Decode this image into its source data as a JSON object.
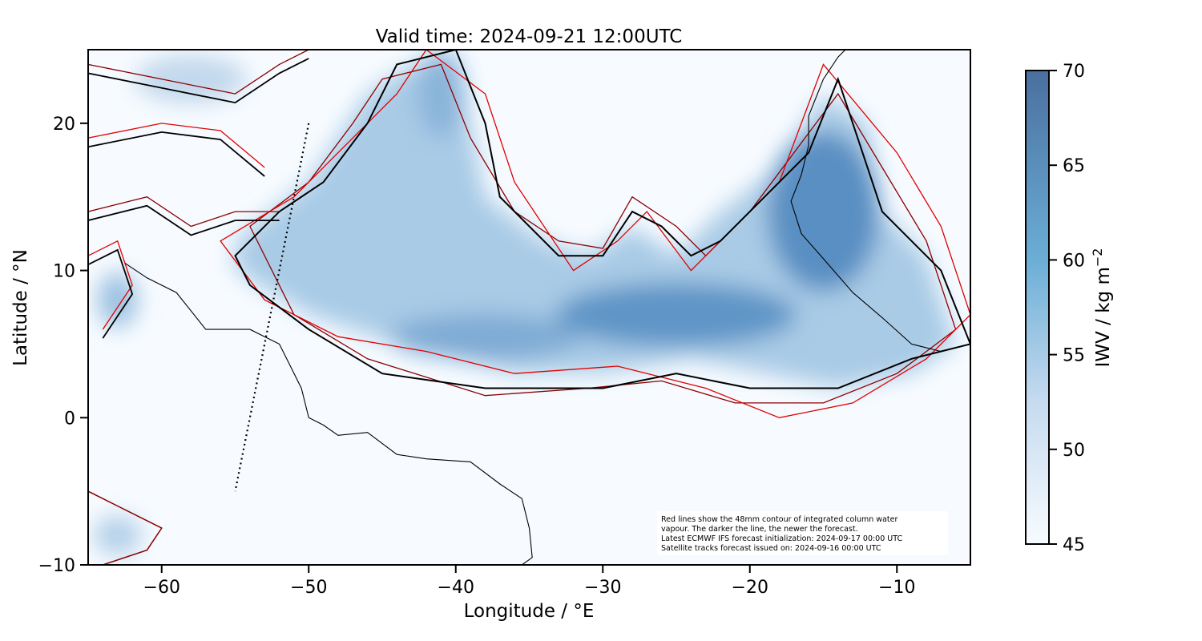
{
  "title": "Valid time: 2024-09-21 12:00UTC",
  "x_axis": {
    "label": "Longitude / °E",
    "range": [
      -65,
      -5
    ],
    "ticks": [
      -60,
      -50,
      -40,
      -30,
      -20,
      -10
    ],
    "tick_labels": [
      "−60",
      "−50",
      "−40",
      "−30",
      "−20",
      "−10"
    ]
  },
  "y_axis": {
    "label": "Latitude / °N",
    "range": [
      -10,
      25
    ],
    "ticks": [
      -10,
      0,
      10,
      20
    ],
    "tick_labels": [
      "−10",
      "0",
      "10",
      "20"
    ]
  },
  "colorbar": {
    "label": "IWV / kg m",
    "label_exponent": "−2",
    "range": [
      45,
      70
    ],
    "ticks": [
      45,
      50,
      55,
      60,
      65,
      70
    ],
    "tick_labels": [
      "45",
      "50",
      "55",
      "60",
      "65",
      "70"
    ],
    "color_low": "#f7fbff",
    "color_high": "#4a6f9f"
  },
  "info_box": {
    "lines": [
      "Red lines show the 48mm contour of integrated column water",
      "vapour. The darker the line, the newer the forecast.",
      "Latest ECMWF IFS forecast initialization: 2024-09-17 00:00 UTC",
      "Satellite tracks forecast issued on: 2024-09-16 00:00 UTC"
    ]
  },
  "colors": {
    "newest_contour": "#000000",
    "older_contour_dark": "#8b0000",
    "older_contour": "#e00000",
    "coastline": "#000000",
    "satellite_track": "#000000"
  },
  "satellite_track": {
    "start": {
      "lon": -50.0,
      "lat": 20.0
    },
    "end": {
      "lon": -55.0,
      "lat": -5.0
    }
  },
  "main_moist_band": [
    [
      -55,
      12
    ],
    [
      -50,
      16
    ],
    [
      -46,
      22
    ],
    [
      -43,
      24
    ],
    [
      -40,
      24
    ],
    [
      -39,
      20
    ],
    [
      -38,
      15
    ],
    [
      -34,
      12
    ],
    [
      -31,
      11
    ],
    [
      -28,
      13
    ],
    [
      -25,
      11
    ],
    [
      -22,
      14
    ],
    [
      -18,
      17
    ],
    [
      -15,
      22
    ],
    [
      -12,
      20
    ],
    [
      -11,
      14
    ],
    [
      -8,
      11
    ],
    [
      -6,
      5
    ],
    [
      -9,
      3
    ],
    [
      -14,
      2
    ],
    [
      -19,
      3
    ],
    [
      -24,
      4
    ],
    [
      -30,
      3
    ],
    [
      -36,
      3
    ],
    [
      -44,
      5
    ],
    [
      -50,
      7
    ],
    [
      -55,
      10
    ]
  ],
  "newest_contour": [
    [
      -55,
      11
    ],
    [
      -52,
      14
    ],
    [
      -49,
      16
    ],
    [
      -46,
      20
    ],
    [
      -44,
      24
    ],
    [
      -40,
      25
    ],
    [
      -38,
      20
    ],
    [
      -37,
      15
    ],
    [
      -33,
      11
    ],
    [
      -30,
      11
    ],
    [
      -28,
      14
    ],
    [
      -26,
      13
    ],
    [
      -24,
      11
    ],
    [
      -22,
      12
    ],
    [
      -19,
      15
    ],
    [
      -16,
      18
    ],
    [
      -14,
      23
    ],
    [
      -13,
      20
    ],
    [
      -11,
      14
    ],
    [
      -7,
      10
    ],
    [
      -5,
      5
    ],
    [
      -9,
      4
    ],
    [
      -14,
      2
    ],
    [
      -20,
      2
    ],
    [
      -25,
      3
    ],
    [
      -30,
      2
    ],
    [
      -38,
      2
    ],
    [
      -45,
      3
    ],
    [
      -50,
      6
    ],
    [
      -54,
      9
    ],
    [
      -55,
      11
    ]
  ],
  "older_contours": [
    [
      [
        -54,
        13
      ],
      [
        -50,
        16
      ],
      [
        -47,
        20
      ],
      [
        -45,
        23
      ],
      [
        -41,
        24
      ],
      [
        -39,
        19
      ],
      [
        -36,
        14
      ],
      [
        -33,
        12
      ],
      [
        -30,
        11.5
      ],
      [
        -28,
        15
      ],
      [
        -25,
        13
      ],
      [
        -23,
        11
      ],
      [
        -20,
        14
      ],
      [
        -17,
        18
      ],
      [
        -14,
        22
      ],
      [
        -11,
        17
      ],
      [
        -8,
        12
      ],
      [
        -6,
        6
      ],
      [
        -10,
        3
      ],
      [
        -15,
        1
      ],
      [
        -21,
        1
      ],
      [
        -26,
        2.5
      ],
      [
        -31,
        2
      ],
      [
        -38,
        1.5
      ],
      [
        -46,
        4
      ],
      [
        -51,
        7
      ],
      [
        -54,
        13
      ]
    ],
    [
      [
        -56,
        12
      ],
      [
        -51,
        15
      ],
      [
        -48,
        18
      ],
      [
        -44,
        22
      ],
      [
        -42,
        25
      ],
      [
        -38,
        22
      ],
      [
        -36,
        16
      ],
      [
        -32,
        10
      ],
      [
        -29,
        12
      ],
      [
        -27,
        14
      ],
      [
        -24,
        10
      ],
      [
        -21,
        13
      ],
      [
        -18,
        16
      ],
      [
        -15,
        24
      ],
      [
        -10,
        18
      ],
      [
        -7,
        13
      ],
      [
        -5,
        7
      ],
      [
        -8,
        4
      ],
      [
        -13,
        1
      ],
      [
        -18,
        0
      ],
      [
        -23,
        2
      ],
      [
        -29,
        3.5
      ],
      [
        -36,
        3
      ],
      [
        -42,
        4.5
      ],
      [
        -48,
        5.5
      ],
      [
        -53,
        8
      ],
      [
        -56,
        12
      ]
    ]
  ],
  "north_west_features": [
    [
      [
        -65,
        24
      ],
      [
        -60,
        23
      ],
      [
        -55,
        22
      ],
      [
        -52,
        24
      ],
      [
        -50,
        25
      ]
    ],
    [
      [
        -65,
        19
      ],
      [
        -60,
        20
      ],
      [
        -56,
        19.5
      ],
      [
        -53,
        17
      ]
    ],
    [
      [
        -65,
        14
      ],
      [
        -61,
        15
      ],
      [
        -58,
        13
      ],
      [
        -55,
        14
      ],
      [
        -52,
        14
      ]
    ],
    [
      [
        -65,
        11
      ],
      [
        -63,
        12
      ],
      [
        -62,
        9
      ],
      [
        -64,
        6
      ]
    ]
  ],
  "south_west_feature": [
    [
      -65,
      -5
    ],
    [
      -63,
      -6
    ],
    [
      -60,
      -7.5
    ],
    [
      -61,
      -9
    ],
    [
      -64,
      -10
    ]
  ],
  "coastline": [
    [
      -62.5,
      10.5
    ],
    [
      -61,
      9.5
    ],
    [
      -59,
      8.5
    ],
    [
      -57,
      6
    ],
    [
      -54,
      6
    ],
    [
      -52,
      5
    ],
    [
      -50.5,
      2
    ],
    [
      -50,
      0
    ],
    [
      -49,
      -0.5
    ],
    [
      -48,
      -1.2
    ],
    [
      -46,
      -1
    ],
    [
      -44,
      -2.5
    ],
    [
      -42,
      -2.8
    ],
    [
      -39,
      -3
    ],
    [
      -37,
      -4.5
    ],
    [
      -35.5,
      -5.5
    ],
    [
      -35,
      -7.5
    ],
    [
      -34.8,
      -9.5
    ],
    [
      -35.5,
      -10
    ]
  ],
  "africa_coast": [
    [
      -5,
      5
    ],
    [
      -7,
      4.5
    ],
    [
      -9,
      5
    ],
    [
      -11,
      6.8
    ],
    [
      -13,
      8.5
    ],
    [
      -15,
      10.8
    ],
    [
      -16.5,
      12.5
    ],
    [
      -17.2,
      14.7
    ],
    [
      -16.5,
      16.5
    ],
    [
      -16,
      18.5
    ],
    [
      -16,
      20.5
    ],
    [
      -15,
      23
    ],
    [
      -14,
      24.5
    ],
    [
      -13.5,
      25
    ]
  ]
}
